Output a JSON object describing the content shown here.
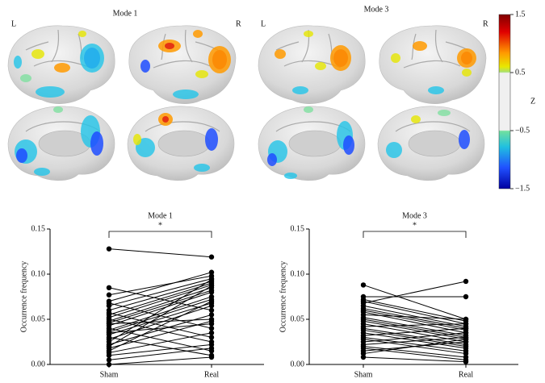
{
  "brain_maps": {
    "panels": [
      {
        "title": "Mode 1",
        "left": "L",
        "right": "R"
      },
      {
        "title": "Mode 3",
        "left": "L",
        "right": "R"
      }
    ],
    "colorbar": {
      "label": "Z",
      "range": [
        -1.5,
        1.5
      ],
      "ticks": [
        1.5,
        0.5,
        {
          "value": -0.5,
          "label": "−0.5"
        },
        {
          "value": -1.5,
          "label": "−1.5"
        }
      ]
    }
  },
  "chart_data": [
    {
      "type": "paired",
      "title": "Mode 1",
      "annotation": "*",
      "y_label": "Occurrence frequency",
      "categories": [
        "Sham",
        "Real"
      ],
      "ylim": [
        0,
        0.15
      ],
      "yticks": [
        {
          "value": 0,
          "label": "0.00"
        },
        {
          "value": 0.05,
          "label": "0.05"
        },
        {
          "value": 0.1,
          "label": "0.10"
        },
        {
          "value": 0.15,
          "label": "0.15"
        }
      ],
      "color": "#000000",
      "series": [
        {
          "values": [
            0.128,
            0.119
          ]
        },
        {
          "values": [
            0.085,
            0.06
          ]
        },
        {
          "values": [
            0.077,
            0.098
          ]
        },
        {
          "values": [
            0.07,
            0.102
          ]
        },
        {
          "values": [
            0.068,
            0.04
          ]
        },
        {
          "values": [
            0.065,
            0.095
          ]
        },
        {
          "values": [
            0.06,
            0.092
          ]
        },
        {
          "values": [
            0.057,
            0.03
          ]
        },
        {
          "values": [
            0.055,
            0.09
          ]
        },
        {
          "values": [
            0.052,
            0.088
          ]
        },
        {
          "values": [
            0.05,
            0.025
          ]
        },
        {
          "values": [
            0.048,
            0.085
          ]
        },
        {
          "values": [
            0.046,
            0.082
          ]
        },
        {
          "values": [
            0.045,
            0.05
          ]
        },
        {
          "values": [
            0.043,
            0.08
          ]
        },
        {
          "values": [
            0.04,
            0.015
          ]
        },
        {
          "values": [
            0.038,
            0.075
          ]
        },
        {
          "values": [
            0.036,
            0.072
          ]
        },
        {
          "values": [
            0.035,
            0.045
          ]
        },
        {
          "values": [
            0.033,
            0.068
          ]
        },
        {
          "values": [
            0.03,
            0.01
          ]
        },
        {
          "values": [
            0.028,
            0.065
          ]
        },
        {
          "values": [
            0.025,
            0.094
          ]
        },
        {
          "values": [
            0.022,
            0.055
          ]
        },
        {
          "values": [
            0.02,
            0.087
          ]
        },
        {
          "values": [
            0.018,
            0.048
          ]
        },
        {
          "values": [
            0.015,
            0.07
          ]
        },
        {
          "values": [
            0.013,
            0.035
          ]
        },
        {
          "values": [
            0.01,
            0.022
          ]
        },
        {
          "values": [
            0.005,
            0.018
          ]
        },
        {
          "values": [
            0.0,
            0.008
          ]
        }
      ]
    },
    {
      "type": "paired",
      "title": "Mode 3",
      "annotation": "*",
      "y_label": "Occurrence frequency",
      "categories": [
        "Sham",
        "Real"
      ],
      "ylim": [
        0,
        0.15
      ],
      "yticks": [
        {
          "value": 0,
          "label": "0.00"
        },
        {
          "value": 0.05,
          "label": "0.05"
        },
        {
          "value": 0.1,
          "label": "0.10"
        },
        {
          "value": 0.15,
          "label": "0.15"
        }
      ],
      "color": "#000000",
      "series": [
        {
          "values": [
            0.088,
            0.05
          ]
        },
        {
          "values": [
            0.075,
            0.075
          ]
        },
        {
          "values": [
            0.072,
            0.048
          ]
        },
        {
          "values": [
            0.07,
            0.045
          ]
        },
        {
          "values": [
            0.068,
            0.092
          ]
        },
        {
          "values": [
            0.065,
            0.042
          ]
        },
        {
          "values": [
            0.062,
            0.04
          ]
        },
        {
          "values": [
            0.06,
            0.038
          ]
        },
        {
          "values": [
            0.058,
            0.035
          ]
        },
        {
          "values": [
            0.055,
            0.05
          ]
        },
        {
          "values": [
            0.052,
            0.032
          ]
        },
        {
          "values": [
            0.05,
            0.03
          ]
        },
        {
          "values": [
            0.048,
            0.028
          ]
        },
        {
          "values": [
            0.045,
            0.025
          ]
        },
        {
          "values": [
            0.042,
            0.045
          ]
        },
        {
          "values": [
            0.04,
            0.022
          ]
        },
        {
          "values": [
            0.038,
            0.02
          ]
        },
        {
          "values": [
            0.035,
            0.018
          ]
        },
        {
          "values": [
            0.032,
            0.04
          ]
        },
        {
          "values": [
            0.03,
            0.015
          ]
        },
        {
          "values": [
            0.028,
            0.012
          ]
        },
        {
          "values": [
            0.025,
            0.035
          ]
        },
        {
          "values": [
            0.022,
            0.03
          ]
        },
        {
          "values": [
            0.02,
            0.008
          ]
        },
        {
          "values": [
            0.018,
            0.005
          ]
        },
        {
          "values": [
            0.015,
            0.025
          ]
        },
        {
          "values": [
            0.012,
            0.028
          ]
        },
        {
          "values": [
            0.008,
            0.003
          ]
        }
      ]
    }
  ]
}
